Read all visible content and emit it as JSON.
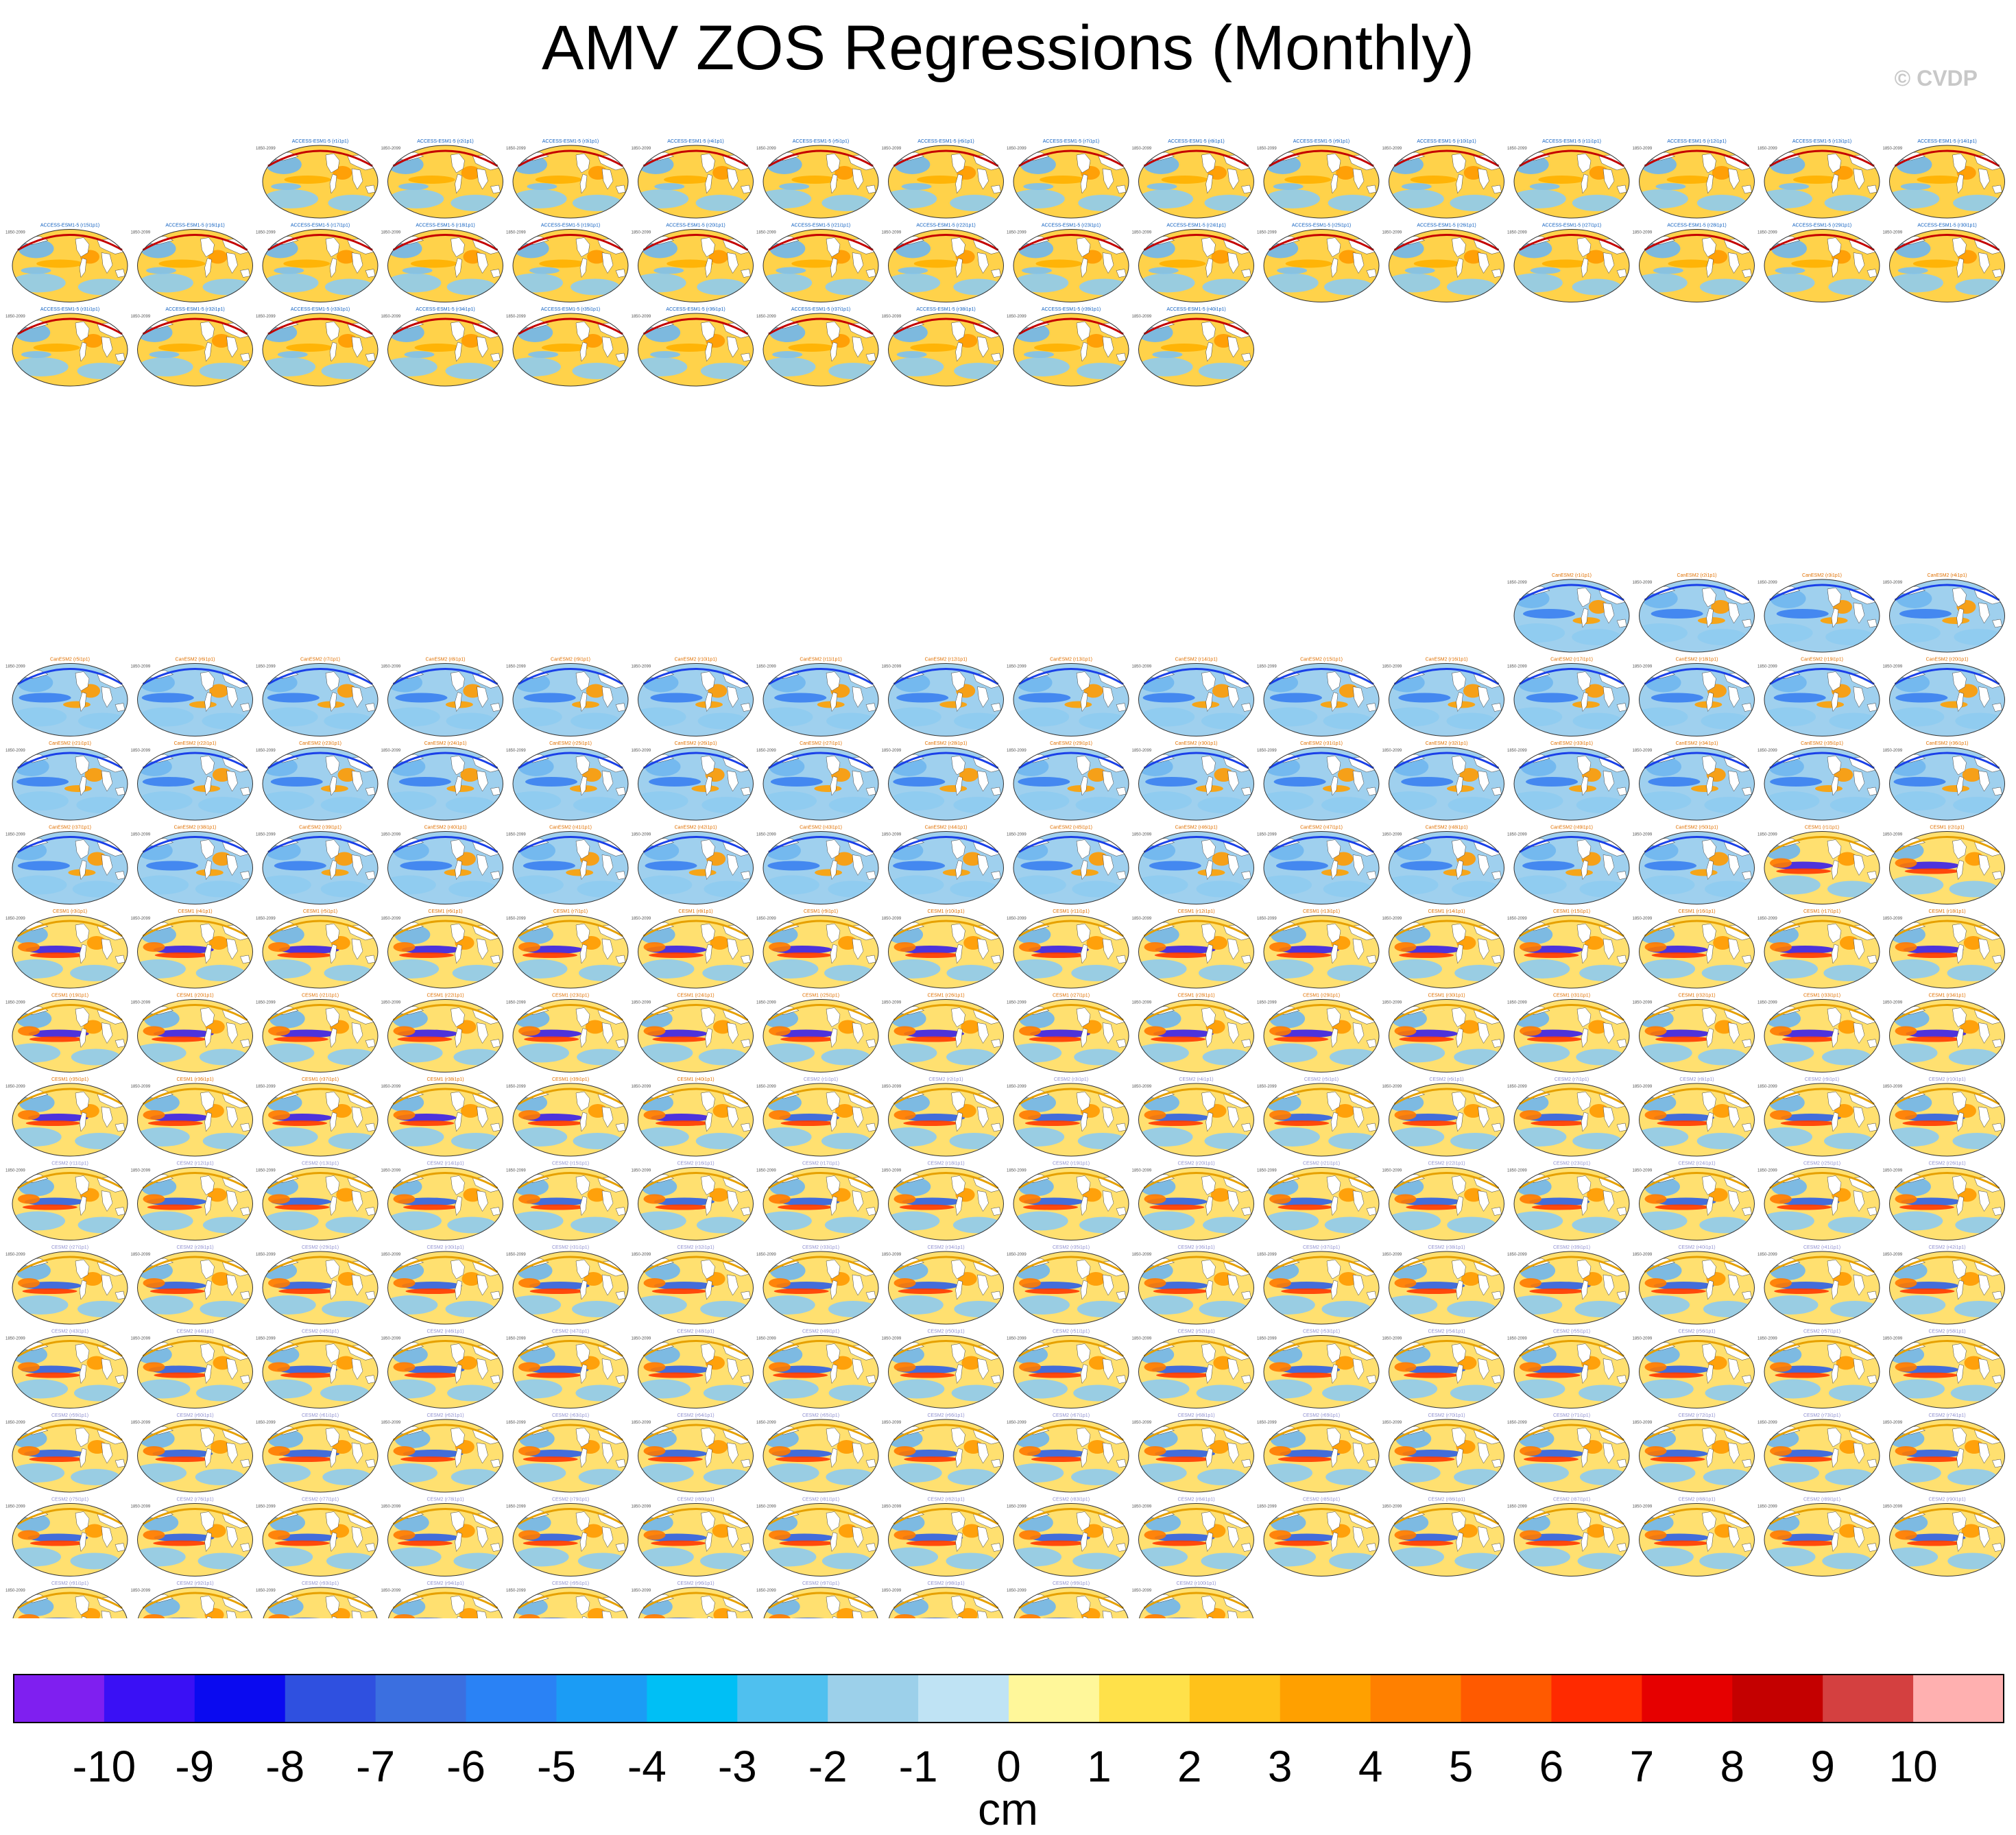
{
  "title": "AMV ZOS Regressions (Monthly)",
  "credit": "© CVDP",
  "panel_period": "1850-2099",
  "colors": {
    "scale": [
      "#7f1ff0",
      "#3a10f5",
      "#0a0af0",
      "#2f50e0",
      "#3b6fe0",
      "#2a82f5",
      "#1b9cf5",
      "#00bff5",
      "#4fc0ef",
      "#9cd0ea",
      "#bfe3f4",
      "#fff79a",
      "#ffe14a",
      "#ffc21a",
      "#ffa000",
      "#ff8000",
      "#ff5a00",
      "#ff2a00",
      "#e60000",
      "#c40000",
      "#d44040",
      "#ffb0b0"
    ],
    "title_access": "#1060c0",
    "title_cesm1": "#e07000",
    "title_cesm2": "#9090d0"
  },
  "chart_data": {
    "type": "heatmap",
    "title": "AMV ZOS Regressions (Monthly)",
    "variable": "ZOS",
    "units": "cm",
    "colorbar": {
      "label": "cm",
      "levels": [
        -10,
        -9,
        -8,
        -7,
        -6,
        -5,
        -4,
        -3,
        -2,
        -1,
        0,
        1,
        2,
        3,
        4,
        5,
        6,
        7,
        8,
        9,
        10
      ],
      "tick_labels": [
        "-10",
        "-9",
        "-8",
        "-7",
        "-6",
        "-5",
        "-4",
        "-3",
        "-2",
        "-1",
        "0",
        "1",
        "2",
        "3",
        "4",
        "5",
        "6",
        "7",
        "8",
        "9",
        "10"
      ],
      "n_colors": 22
    },
    "ensembles": [
      {
        "name": "ACCESS-ESM1-5",
        "members": 40,
        "first_row_start_col": 2,
        "style": "access"
      },
      {
        "name": "CanESM2",
        "members": 50,
        "first_row_start_col": 12,
        "style": "canesm"
      },
      {
        "name": "CESM1",
        "members": 40,
        "first_row_start_col": 0,
        "style": "cesm1"
      },
      {
        "name": "CESM2",
        "members": 100,
        "first_row_start_col": 0,
        "style": "cesm2"
      }
    ]
  }
}
